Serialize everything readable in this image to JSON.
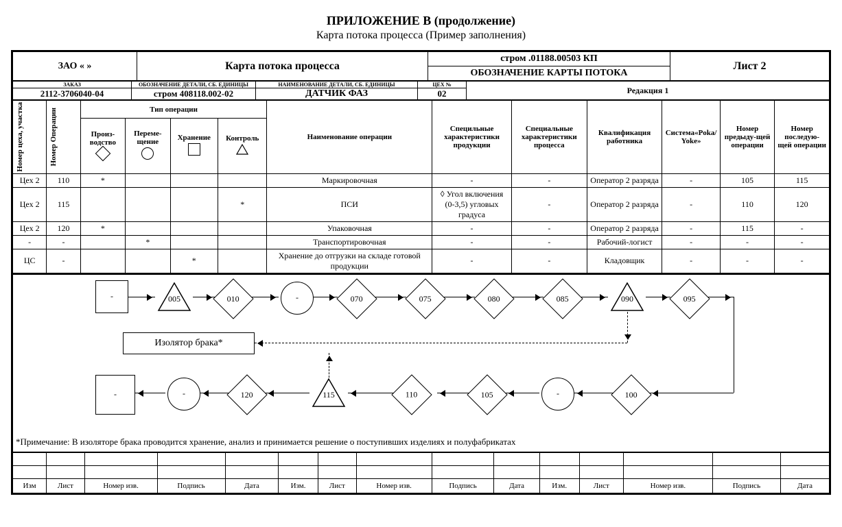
{
  "title": "ПРИЛОЖЕНИЕ В (продолжение)",
  "subtitle": "Карта потока процесса (Пример заполнения)",
  "header": {
    "company": "ЗАО «             »",
    "doc_title": "Карта потока  процесса",
    "card_designation": "стром .01188.00503 КП",
    "card_designation_label": "ОБОЗНАЧЕНИЕ КАРТЫ ПОТОКА",
    "sheet": "Лист  2",
    "order_label": "ЗАКАЗ",
    "order": "2112-3706040-04",
    "part_des_label": "ОБОЗНАЧЕНИЕ ДЕТАЛИ, СБ. ЕДИНИЦЫ",
    "part_des": "стром 408118.002-02",
    "part_name_label": "НАИМЕНОВАНИЕ ДЕТАЛИ, СБ. ЕДИНИЦЫ",
    "part_name": "ДАТЧИК ФАЗ",
    "shop_no_label": "ЦЕХ №",
    "shop_no": "02",
    "revision": "Редакция 1"
  },
  "columns": {
    "shop": "Номер цеха, участка",
    "op_no": "Номер Операции",
    "op_type": "Тип операции",
    "prod": "Произ-водство",
    "move": "Переме-щение",
    "store": "Хранение",
    "ctrl": "Контроль",
    "op_name": "Наименование операции",
    "spec_prod": "Специльные характеристики продукции",
    "spec_proc": "Специальные характеристики процесса",
    "qual": "Квалификация работника",
    "poka": "Система«Poka/ Yoke»",
    "prev": "Номер предыду-щей операции",
    "next": "Номер последую-щей операции"
  },
  "rows": [
    {
      "shop": "Цех 2",
      "no": "110",
      "prod": "*",
      "move": "",
      "store": "",
      "ctrl": "",
      "name": "Маркировочная",
      "sp": "-",
      "sc": "-",
      "q": "Оператор 2 разряда",
      "py": "-",
      "prev": "105",
      "next": "115"
    },
    {
      "shop": "Цех 2",
      "no": "115",
      "prod": "",
      "move": "",
      "store": "",
      "ctrl": "*",
      "name": "ПСИ",
      "sp": "◊ Угол включения (0-3,5) угловых градуса",
      "sc": "-",
      "q": "Оператор 2 разряда",
      "py": "-",
      "prev": "110",
      "next": "120"
    },
    {
      "shop": "Цех 2",
      "no": "120",
      "prod": "*",
      "move": "",
      "store": "",
      "ctrl": "",
      "name": "Упаковочная",
      "sp": "-",
      "sc": "-",
      "q": "Оператор 2 разряда",
      "py": "-",
      "prev": "115",
      "next": "-"
    },
    {
      "shop": "-",
      "no": "-",
      "prod": "",
      "move": "*",
      "store": "",
      "ctrl": "",
      "name": "Транспортировочная",
      "sp": "-",
      "sc": "-",
      "q": "Рабочий-логист",
      "py": "-",
      "prev": "-",
      "next": "-"
    },
    {
      "shop": "ЦС",
      "no": "-",
      "prod": "",
      "move": "",
      "store": "*",
      "ctrl": "",
      "name": "Хранение до отгрузки на складе готовой продукции",
      "sp": "-",
      "sc": "-",
      "q": "Кладовщик",
      "py": "-",
      "prev": "-",
      "next": "-"
    }
  ],
  "flow": {
    "isolator": "Изолятор брака*",
    "nodes": {
      "n005": "005",
      "n010": "010",
      "n070": "070",
      "n075": "075",
      "n080": "080",
      "n085": "085",
      "n090": "090",
      "n095": "095",
      "n100": "100",
      "n105": "105",
      "n110": "110",
      "n115": "115",
      "n120": "120"
    }
  },
  "note": "*Примечание: В изоляторе брака проводится хранение,  анализ и принимается решение о поступивших изделиях и полуфабрикатах",
  "sig_labels": [
    "Изм",
    "Лист",
    "Номер изв.",
    "Подпись",
    "Дата",
    "Изм.",
    "Лист",
    "Номер изв.",
    "Подпись",
    "Дата",
    "Изм.",
    "Лист",
    "Номер изв.",
    "Подпись",
    "Дата"
  ],
  "sig_widths": [
    36,
    42,
    88,
    82,
    62,
    44,
    42,
    92,
    74,
    52,
    44,
    50,
    110,
    82,
    56
  ]
}
